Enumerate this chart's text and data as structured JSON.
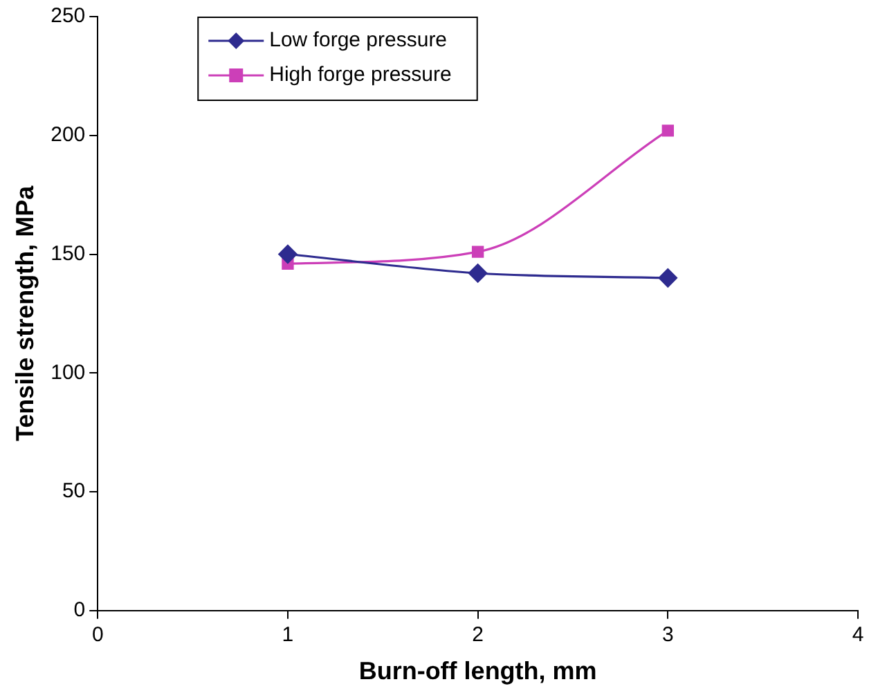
{
  "chart_data": {
    "type": "line",
    "xlabel": "Burn-off length, mm",
    "ylabel": "Tensile strength, MPa",
    "xlim": [
      0,
      4
    ],
    "xticks": [
      0,
      1,
      2,
      3,
      4
    ],
    "ylim": [
      0,
      250
    ],
    "yticks": [
      0,
      50,
      100,
      150,
      200,
      250
    ],
    "x": [
      1,
      2,
      3
    ],
    "grid": false,
    "legend": "top left",
    "series": [
      {
        "name": "Low forge pressure",
        "color": "#2e2b8f",
        "marker": "diamond",
        "values": [
          150,
          142,
          140
        ]
      },
      {
        "name": "High forge pressure",
        "color": "#cc3fb8",
        "marker": "square",
        "values": [
          146,
          151,
          202
        ]
      }
    ]
  }
}
